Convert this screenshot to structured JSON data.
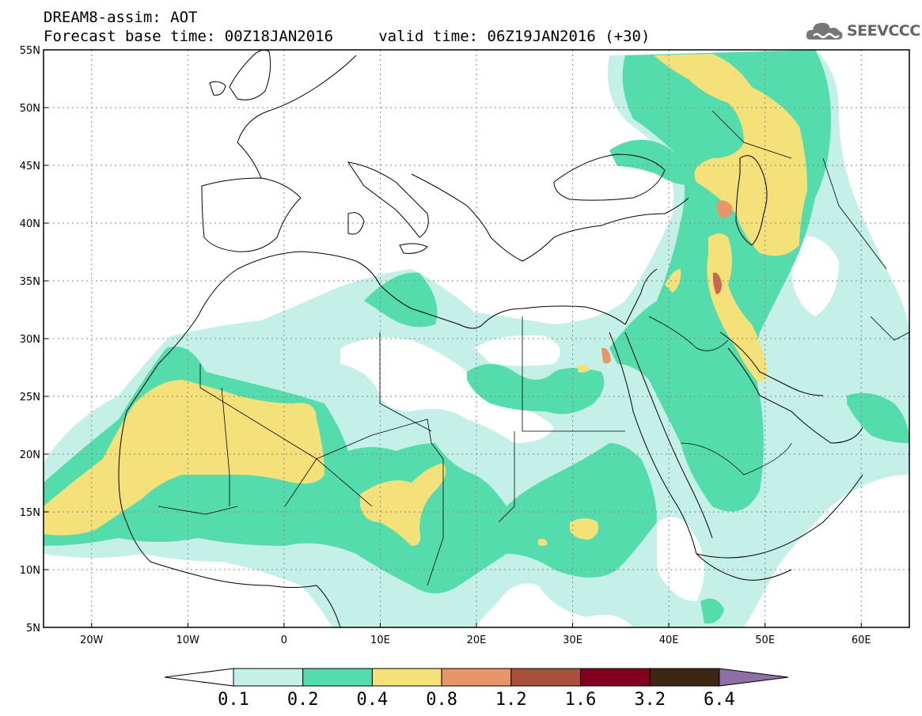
{
  "header": {
    "title_line1": "DREAM8-assim: AOT",
    "title_line2": "Forecast base time: 00Z18JAN2016     valid time: 06Z19JAN2016 (+30)",
    "logo_text": "SEEVCCC"
  },
  "map": {
    "lon_range": [
      -25,
      65
    ],
    "lat_range": [
      5,
      55
    ],
    "lon_ticks": [
      {
        "lon": -20,
        "label": "20W"
      },
      {
        "lon": -10,
        "label": "10W"
      },
      {
        "lon": 0,
        "label": "0"
      },
      {
        "lon": 10,
        "label": "10E"
      },
      {
        "lon": 20,
        "label": "20E"
      },
      {
        "lon": 30,
        "label": "30E"
      },
      {
        "lon": 40,
        "label": "40E"
      },
      {
        "lon": 50,
        "label": "50E"
      },
      {
        "lon": 60,
        "label": "60E"
      }
    ],
    "lat_ticks": [
      {
        "lat": 55,
        "label": "55N"
      },
      {
        "lat": 50,
        "label": "50N"
      },
      {
        "lat": 45,
        "label": "45N"
      },
      {
        "lat": 40,
        "label": "40N"
      },
      {
        "lat": 35,
        "label": "35N"
      },
      {
        "lat": 30,
        "label": "30N"
      },
      {
        "lat": 25,
        "label": "25N"
      },
      {
        "lat": 20,
        "label": "20N"
      },
      {
        "lat": 15,
        "label": "15N"
      },
      {
        "lat": 10,
        "label": "10N"
      },
      {
        "lat": 5,
        "label": "5N"
      }
    ],
    "grid": true,
    "field": "Aerosol optical thickness (AOT)"
  },
  "colorbar": {
    "levels": [
      "0.1",
      "0.2",
      "0.4",
      "0.8",
      "1.2",
      "1.6",
      "3.2",
      "6.4"
    ],
    "colors": [
      "#ffffff",
      "#c4f0e8",
      "#55dcac",
      "#f4e17a",
      "#e8956a",
      "#a8503a",
      "#820020",
      "#3e2614",
      "#8e6fa8"
    ]
  }
}
